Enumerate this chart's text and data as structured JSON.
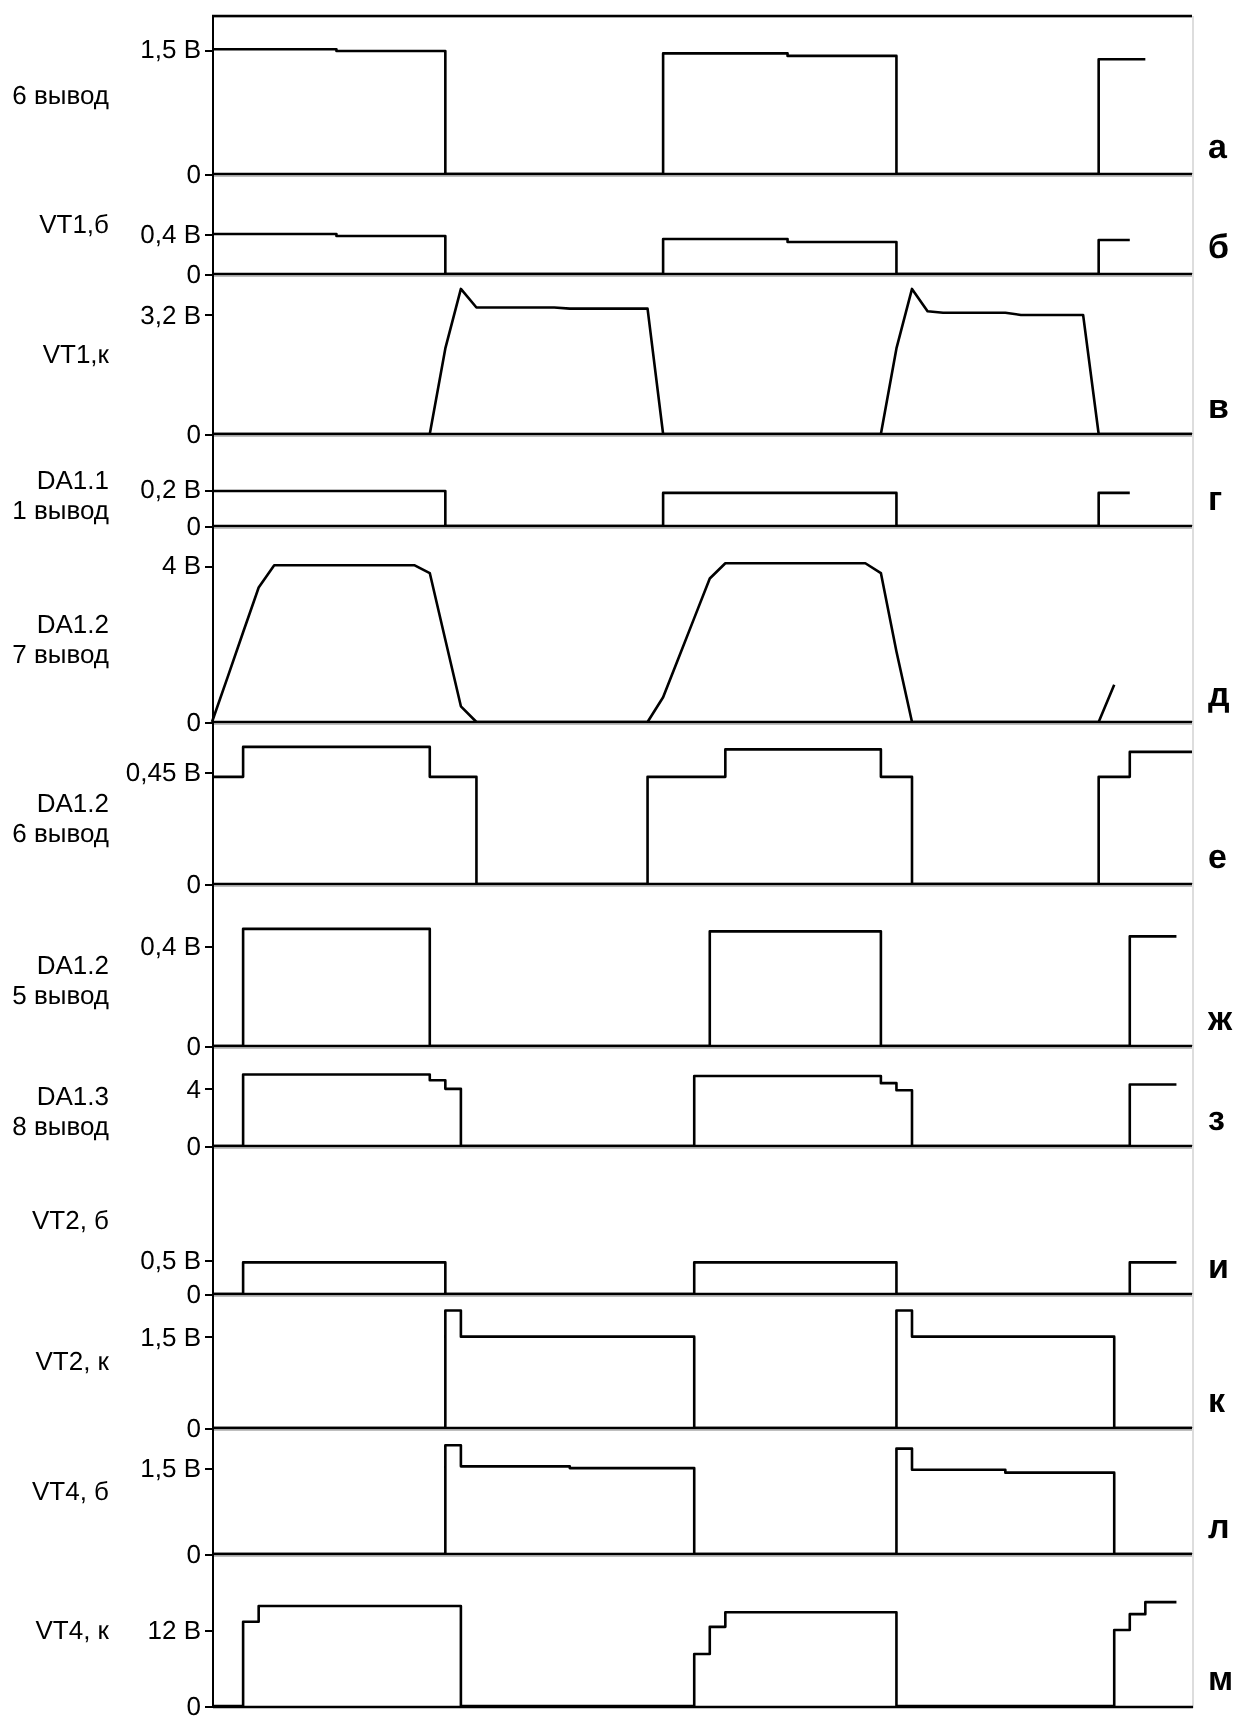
{
  "chart_data": [
    {
      "type": "step",
      "ylabel": "6 вывод",
      "annotations": [
        "а"
      ],
      "ylim": [
        0,
        1.9
      ],
      "yticks": [
        0,
        {
          "value": 1.5,
          "label": "1,5 В"
        }
      ],
      "tick_labels": "y",
      "categories": [
        null,
        null,
        null,
        null,
        null,
        null,
        null,
        null,
        null,
        null,
        null,
        null,
        null,
        null,
        null,
        null,
        null,
        null,
        null,
        null,
        null,
        null,
        null,
        null,
        null,
        null,
        null,
        null,
        null,
        null,
        null,
        null,
        null,
        null,
        null,
        null,
        null,
        null,
        null,
        null,
        null,
        null,
        null,
        null,
        null,
        null,
        null,
        null,
        null,
        null,
        null,
        null,
        null,
        null,
        null,
        null,
        null,
        null,
        null,
        null,
        null
      ],
      "series": [
        {
          "color": "#000000",
          "values": [
            1.5,
            1.5,
            1.5,
            1.5,
            1.5,
            1.5,
            1.5,
            1.5,
            1.48,
            1.48,
            1.48,
            1.48,
            1.48,
            1.48,
            1.48,
            0,
            0,
            0,
            0,
            0,
            0,
            0,
            0,
            0,
            0,
            0,
            0,
            0,
            0,
            1.45,
            1.45,
            1.45,
            1.45,
            1.45,
            1.45,
            1.45,
            1.45,
            1.42,
            1.42,
            1.42,
            1.42,
            1.42,
            1.42,
            1.42,
            0,
            0,
            0,
            0,
            0,
            0,
            0,
            0,
            0,
            0,
            0,
            0,
            0,
            1.38,
            1.38,
            1.38,
            1.38
          ]
        }
      ]
    },
    {
      "type": "step",
      "ylabel": "VT1,б",
      "annotations": [
        "б"
      ],
      "ylim": [
        0,
        1.0
      ],
      "yticks": [
        0,
        {
          "value": 0.4,
          "label": "0,4 В"
        }
      ],
      "tick_labels": "y",
      "categories": [
        null,
        null,
        null,
        null,
        null,
        null,
        null,
        null,
        null,
        null,
        null,
        null,
        null,
        null,
        null,
        null,
        null,
        null,
        null,
        null,
        null,
        null,
        null,
        null,
        null,
        null,
        null,
        null,
        null,
        null,
        null,
        null,
        null,
        null,
        null,
        null,
        null,
        null,
        null,
        null,
        null,
        null,
        null,
        null,
        null,
        null,
        null,
        null,
        null,
        null,
        null,
        null,
        null,
        null,
        null,
        null,
        null,
        null,
        null,
        null
      ],
      "series": [
        {
          "color": "#000000",
          "values": [
            0.4,
            0.4,
            0.4,
            0.4,
            0.4,
            0.4,
            0.4,
            0.4,
            0.38,
            0.38,
            0.38,
            0.38,
            0.38,
            0.38,
            0.38,
            0,
            0,
            0,
            0,
            0,
            0,
            0,
            0,
            0,
            0,
            0,
            0,
            0,
            0,
            0.35,
            0.35,
            0.35,
            0.35,
            0.35,
            0.35,
            0.35,
            0.35,
            0.32,
            0.32,
            0.32,
            0.32,
            0.32,
            0.32,
            0.32,
            0,
            0,
            0,
            0,
            0,
            0,
            0,
            0,
            0,
            0,
            0,
            0,
            0,
            0.34,
            0.34,
            0.34
          ]
        }
      ]
    },
    {
      "type": "line",
      "ylabel": "VT1,к",
      "annotations": [
        "в"
      ],
      "ylim": [
        0,
        4.3
      ],
      "yticks": [
        0,
        {
          "value": 3.2,
          "label": "3,2 В"
        }
      ],
      "tick_labels": "y",
      "categories": [
        null,
        null,
        null,
        null,
        null,
        null,
        null,
        null,
        null,
        null,
        null,
        null,
        null,
        null,
        null,
        null,
        null,
        null,
        null,
        null,
        null,
        null,
        null,
        null,
        null,
        null,
        null,
        null,
        null,
        null,
        null,
        null,
        null,
        null,
        null,
        null,
        null,
        null,
        null,
        null,
        null,
        null,
        null,
        null,
        null,
        null,
        null,
        null,
        null,
        null,
        null,
        null,
        null,
        null,
        null,
        null,
        null,
        null,
        null,
        null,
        null,
        null,
        null,
        null
      ],
      "series": [
        {
          "color": "#000000",
          "values": [
            0,
            0,
            0,
            0,
            0,
            0,
            0,
            0,
            0,
            0,
            0,
            0,
            0,
            0,
            0,
            2.3,
            3.9,
            3.4,
            3.4,
            3.4,
            3.4,
            3.4,
            3.4,
            3.37,
            3.37,
            3.37,
            3.37,
            3.37,
            3.37,
            0,
            0,
            0,
            0,
            0,
            0,
            0,
            0,
            0,
            0,
            0,
            0,
            0,
            0,
            0,
            2.3,
            3.9,
            3.3,
            3.26,
            3.26,
            3.26,
            3.26,
            3.26,
            3.2,
            3.2,
            3.2,
            3.2,
            3.2,
            0,
            0,
            0,
            0,
            0,
            0,
            0
          ]
        }
      ]
    },
    {
      "type": "step",
      "ylabel": "DA1.1\n1 вывод",
      "annotations": [
        "г"
      ],
      "ylim": [
        0,
        0.5
      ],
      "yticks": [
        0,
        {
          "value": 0.2,
          "label": "0,2 В"
        }
      ],
      "tick_labels": "y",
      "categories": [
        null,
        null,
        null,
        null,
        null,
        null,
        null,
        null,
        null,
        null,
        null,
        null,
        null,
        null,
        null,
        null,
        null,
        null,
        null,
        null,
        null,
        null,
        null,
        null,
        null,
        null,
        null,
        null,
        null,
        null,
        null,
        null,
        null,
        null,
        null,
        null,
        null,
        null,
        null,
        null,
        null,
        null,
        null,
        null,
        null,
        null,
        null,
        null,
        null,
        null,
        null,
        null,
        null,
        null,
        null,
        null,
        null,
        null,
        null,
        null
      ],
      "series": [
        {
          "color": "#000000",
          "values": [
            0.19,
            0.19,
            0.19,
            0.19,
            0.19,
            0.19,
            0.19,
            0.19,
            0.19,
            0.19,
            0.19,
            0.19,
            0.19,
            0.19,
            0.19,
            0,
            0,
            0,
            0,
            0,
            0,
            0,
            0,
            0,
            0,
            0,
            0,
            0,
            0,
            0.18,
            0.18,
            0.18,
            0.18,
            0.18,
            0.18,
            0.18,
            0.18,
            0.18,
            0.18,
            0.18,
            0.18,
            0.18,
            0.18,
            0.18,
            0,
            0,
            0,
            0,
            0,
            0,
            0,
            0,
            0,
            0,
            0,
            0,
            0,
            0.18,
            0.18,
            0.18
          ]
        }
      ]
    },
    {
      "type": "line",
      "ylabel": "DA1.2\n7 вывод",
      "annotations": [
        "д"
      ],
      "ylim": [
        0,
        5
      ],
      "yticks": [
        0,
        {
          "value": 4,
          "label": "4 В"
        }
      ],
      "tick_labels": "y",
      "categories": [
        null,
        null,
        null,
        null,
        null,
        null,
        null,
        null,
        null,
        null,
        null,
        null,
        null,
        null,
        null,
        null,
        null,
        null,
        null,
        null,
        null,
        null,
        null,
        null,
        null,
        null,
        null,
        null,
        null,
        null,
        null,
        null,
        null,
        null,
        null,
        null,
        null,
        null,
        null,
        null,
        null,
        null,
        null,
        null,
        null,
        null,
        null,
        null,
        null,
        null,
        null,
        null,
        null,
        null,
        null,
        null,
        null,
        null,
        null
      ],
      "series": [
        {
          "color": "#000000",
          "values": [
            0,
            1.14,
            2.29,
            3.43,
            4,
            4,
            4,
            4,
            4,
            4,
            4,
            4,
            4,
            4,
            3.8,
            2.1,
            0.4,
            0,
            0,
            0,
            0,
            0,
            0,
            0,
            0,
            0,
            0,
            0,
            0,
            0.63,
            1.64,
            2.65,
            3.66,
            4.05,
            4.05,
            4.05,
            4.05,
            4.05,
            4.05,
            4.05,
            4.05,
            4.05,
            4.05,
            3.8,
            1.8,
            0,
            0,
            0,
            0,
            0,
            0,
            0,
            0,
            0,
            0,
            0,
            0,
            0,
            0.95
          ]
        }
      ]
    },
    {
      "type": "step",
      "ylabel": "DA1.2\n6 вывод",
      "annotations": [
        "е"
      ],
      "ylim": [
        0,
        0.65
      ],
      "yticks": [
        0,
        {
          "value": 0.45,
          "label": "0,45 В"
        }
      ],
      "tick_labels": "y",
      "categories": [
        null,
        null,
        null,
        null,
        null,
        null,
        null,
        null,
        null,
        null,
        null,
        null,
        null,
        null,
        null,
        null,
        null,
        null,
        null,
        null,
        null,
        null,
        null,
        null,
        null,
        null,
        null,
        null,
        null,
        null,
        null,
        null,
        null,
        null,
        null,
        null,
        null,
        null,
        null,
        null,
        null,
        null,
        null,
        null,
        null,
        null,
        null,
        null,
        null,
        null,
        null,
        null,
        null,
        null,
        null,
        null,
        null,
        null,
        null,
        null,
        null,
        null,
        null,
        null
      ],
      "series": [
        {
          "color": "#000000",
          "values": [
            0.43,
            0.43,
            0.55,
            0.55,
            0.55,
            0.55,
            0.55,
            0.55,
            0.55,
            0.55,
            0.55,
            0.55,
            0.55,
            0.55,
            0.43,
            0.43,
            0.43,
            0,
            0,
            0,
            0,
            0,
            0,
            0,
            0,
            0,
            0,
            0,
            0.43,
            0.43,
            0.43,
            0.43,
            0.43,
            0.54,
            0.54,
            0.54,
            0.54,
            0.54,
            0.54,
            0.54,
            0.54,
            0.54,
            0.54,
            0.43,
            0.43,
            0,
            0,
            0,
            0,
            0,
            0,
            0,
            0,
            0,
            0,
            0,
            0,
            0.43,
            0.43,
            0.53,
            0.53,
            0.53,
            0.53,
            0.53
          ]
        }
      ]
    },
    {
      "type": "step",
      "ylabel": "DA1.2\n5 вывод",
      "annotations": [
        "ж"
      ],
      "ylim": [
        0,
        0.65
      ],
      "yticks": [
        0,
        {
          "value": 0.4,
          "label": "0,4 В"
        }
      ],
      "tick_labels": "y",
      "categories": [
        null,
        null,
        null,
        null,
        null,
        null,
        null,
        null,
        null,
        null,
        null,
        null,
        null,
        null,
        null,
        null,
        null,
        null,
        null,
        null,
        null,
        null,
        null,
        null,
        null,
        null,
        null,
        null,
        null,
        null,
        null,
        null,
        null,
        null,
        null,
        null,
        null,
        null,
        null,
        null,
        null,
        null,
        null,
        null,
        null,
        null,
        null,
        null,
        null,
        null,
        null,
        null,
        null,
        null,
        null,
        null,
        null,
        null,
        null,
        null,
        null,
        null,
        null
      ],
      "series": [
        {
          "color": "#000000",
          "values": [
            0,
            0,
            0.47,
            0.47,
            0.47,
            0.47,
            0.47,
            0.47,
            0.47,
            0.47,
            0.47,
            0.47,
            0.47,
            0.47,
            0,
            0,
            0,
            0,
            0,
            0,
            0,
            0,
            0,
            0,
            0,
            0,
            0,
            0,
            0,
            0,
            0,
            0,
            0.46,
            0.46,
            0.46,
            0.46,
            0.46,
            0.46,
            0.46,
            0.46,
            0.46,
            0.46,
            0.46,
            0,
            0,
            0,
            0,
            0,
            0,
            0,
            0,
            0,
            0,
            0,
            0,
            0,
            0,
            0,
            0,
            0.44,
            0.44,
            0.44,
            0.44
          ]
        }
      ]
    },
    {
      "type": "step",
      "ylabel": "DA1.3\n8 вывод",
      "annotations": [
        "з"
      ],
      "ylim": [
        0,
        7
      ],
      "yticks": [
        0,
        4
      ],
      "tick_labels": "y",
      "categories": [
        null,
        null,
        null,
        null,
        null,
        null,
        null,
        null,
        null,
        null,
        null,
        null,
        null,
        null,
        null,
        null,
        null,
        null,
        null,
        null,
        null,
        null,
        null,
        null,
        null,
        null,
        null,
        null,
        null,
        null,
        null,
        null,
        null,
        null,
        null,
        null,
        null,
        null,
        null,
        null,
        null,
        null,
        null,
        null,
        null,
        null,
        null,
        null,
        null,
        null,
        null,
        null,
        null,
        null,
        null,
        null,
        null,
        null,
        null,
        null,
        null,
        null,
        null
      ],
      "series": [
        {
          "color": "#000000",
          "values": [
            0,
            0,
            5,
            5,
            5,
            5,
            5,
            5,
            5,
            5,
            5,
            5,
            5,
            5,
            4.6,
            4,
            0,
            0,
            0,
            0,
            0,
            0,
            0,
            0,
            0,
            0,
            0,
            0,
            0,
            0,
            0,
            4.9,
            4.9,
            4.9,
            4.9,
            4.9,
            4.9,
            4.9,
            4.9,
            4.9,
            4.9,
            4.9,
            4.9,
            4.4,
            3.9,
            0,
            0,
            0,
            0,
            0,
            0,
            0,
            0,
            0,
            0,
            0,
            0,
            0,
            0,
            4.3,
            4.3,
            4.3,
            4.3
          ]
        }
      ]
    },
    {
      "type": "step",
      "ylabel": "VT2, б",
      "annotations": [
        "и"
      ],
      "ylim": [
        0,
        2.2
      ],
      "yticks": [
        0,
        {
          "value": 0.5,
          "label": "0,5 В"
        }
      ],
      "tick_labels": "y",
      "categories": [
        null,
        null,
        null,
        null,
        null,
        null,
        null,
        null,
        null,
        null,
        null,
        null,
        null,
        null,
        null,
        null,
        null,
        null,
        null,
        null,
        null,
        null,
        null,
        null,
        null,
        null,
        null,
        null,
        null,
        null,
        null,
        null,
        null,
        null,
        null,
        null,
        null,
        null,
        null,
        null,
        null,
        null,
        null,
        null,
        null,
        null,
        null,
        null,
        null,
        null,
        null,
        null,
        null,
        null,
        null,
        null,
        null,
        null,
        null,
        null,
        null,
        null,
        null
      ],
      "series": [
        {
          "color": "#000000",
          "values": [
            0,
            0,
            0.47,
            0.47,
            0.47,
            0.47,
            0.47,
            0.47,
            0.47,
            0.47,
            0.47,
            0.47,
            0.47,
            0.47,
            0.47,
            0,
            0,
            0,
            0,
            0,
            0,
            0,
            0,
            0,
            0,
            0,
            0,
            0,
            0,
            0,
            0,
            0.47,
            0.47,
            0.47,
            0.47,
            0.47,
            0.47,
            0.47,
            0.47,
            0.47,
            0.47,
            0.47,
            0.47,
            0.47,
            0,
            0,
            0,
            0,
            0,
            0,
            0,
            0,
            0,
            0,
            0,
            0,
            0,
            0,
            0,
            0.47,
            0.47,
            0.47,
            0.47
          ]
        }
      ]
    },
    {
      "type": "step",
      "ylabel": "VT2, к",
      "annotations": [
        "к"
      ],
      "ylim": [
        0,
        2.2
      ],
      "yticks": [
        0,
        {
          "value": 1.5,
          "label": "1,5 В"
        }
      ],
      "tick_labels": "y",
      "categories": [
        null,
        null,
        null,
        null,
        null,
        null,
        null,
        null,
        null,
        null,
        null,
        null,
        null,
        null,
        null,
        null,
        null,
        null,
        null,
        null,
        null,
        null,
        null,
        null,
        null,
        null,
        null,
        null,
        null,
        null,
        null,
        null,
        null,
        null,
        null,
        null,
        null,
        null,
        null,
        null,
        null,
        null,
        null,
        null,
        null,
        null,
        null,
        null,
        null,
        null,
        null,
        null,
        null,
        null,
        null,
        null,
        null,
        null,
        null,
        null,
        null,
        null,
        null,
        null
      ],
      "series": [
        {
          "color": "#000000",
          "values": [
            0,
            0,
            0,
            0,
            0,
            0,
            0,
            0,
            0,
            0,
            0,
            0,
            0,
            0,
            0,
            1.93,
            1.5,
            1.5,
            1.5,
            1.5,
            1.5,
            1.5,
            1.5,
            1.5,
            1.5,
            1.5,
            1.5,
            1.5,
            1.5,
            1.5,
            1.5,
            0,
            0,
            0,
            0,
            0,
            0,
            0,
            0,
            0,
            0,
            0,
            0,
            0,
            1.93,
            1.5,
            1.5,
            1.5,
            1.5,
            1.5,
            1.5,
            1.5,
            1.5,
            1.5,
            1.5,
            1.5,
            1.5,
            1.5,
            0,
            0,
            0,
            0,
            0,
            0
          ]
        }
      ]
    },
    {
      "type": "step",
      "ylabel": "VT4, б",
      "annotations": [
        "л"
      ],
      "ylim": [
        0,
        2.2
      ],
      "yticks": [
        0,
        {
          "value": 1.5,
          "label": "1,5 В"
        }
      ],
      "tick_labels": "y",
      "categories": [
        null,
        null,
        null,
        null,
        null,
        null,
        null,
        null,
        null,
        null,
        null,
        null,
        null,
        null,
        null,
        null,
        null,
        null,
        null,
        null,
        null,
        null,
        null,
        null,
        null,
        null,
        null,
        null,
        null,
        null,
        null,
        null,
        null,
        null,
        null,
        null,
        null,
        null,
        null,
        null,
        null,
        null,
        null,
        null,
        null,
        null,
        null,
        null,
        null,
        null,
        null,
        null,
        null,
        null,
        null,
        null,
        null,
        null,
        null,
        null,
        null,
        null,
        null,
        null
      ],
      "series": [
        {
          "color": "#000000",
          "values": [
            0,
            0,
            0,
            0,
            0,
            0,
            0,
            0,
            0,
            0,
            0,
            0,
            0,
            0,
            0,
            1.9,
            1.53,
            1.53,
            1.53,
            1.53,
            1.53,
            1.53,
            1.53,
            1.5,
            1.5,
            1.5,
            1.5,
            1.5,
            1.5,
            1.5,
            1.5,
            0,
            0,
            0,
            0,
            0,
            0,
            0,
            0,
            0,
            0,
            0,
            0,
            0,
            1.84,
            1.47,
            1.47,
            1.47,
            1.47,
            1.47,
            1.47,
            1.42,
            1.42,
            1.42,
            1.42,
            1.42,
            1.42,
            1.42,
            0,
            0,
            0,
            0,
            0,
            0
          ]
        }
      ]
    },
    {
      "type": "step",
      "ylabel": "VT4, к",
      "annotations": [
        "м"
      ],
      "ylim": [
        0,
        24
      ],
      "yticks": [
        0,
        {
          "value": 12,
          "label": "12 В"
        }
      ],
      "tick_labels": "y",
      "categories": [
        null,
        null,
        null,
        null,
        null,
        null,
        null,
        null,
        null,
        null,
        null,
        null,
        null,
        null,
        null,
        null,
        null,
        null,
        null,
        null,
        null,
        null,
        null,
        null,
        null,
        null,
        null,
        null,
        null,
        null,
        null,
        null,
        null,
        null,
        null,
        null,
        null,
        null,
        null,
        null,
        null,
        null,
        null,
        null,
        null,
        null,
        null,
        null,
        null,
        null,
        null,
        null,
        null,
        null,
        null,
        null,
        null,
        null,
        null,
        null,
        null,
        null,
        null
      ],
      "series": [
        {
          "color": "#000000",
          "values": [
            0,
            0,
            13.3,
            15.8,
            15.8,
            15.8,
            15.8,
            15.8,
            15.8,
            15.8,
            15.8,
            15.8,
            15.8,
            15.8,
            15.8,
            15.8,
            0,
            0,
            0,
            0,
            0,
            0,
            0,
            0,
            0,
            0,
            0,
            0,
            0,
            0,
            0,
            8.2,
            12.5,
            14.8,
            14.8,
            14.8,
            14.8,
            14.8,
            14.8,
            14.8,
            14.8,
            14.8,
            14.8,
            14.8,
            0,
            0,
            0,
            0,
            0,
            0,
            0,
            0,
            0,
            0,
            0,
            0,
            0,
            0,
            12,
            14.5,
            16.4,
            16.4,
            16.4
          ]
        }
      ]
    }
  ]
}
